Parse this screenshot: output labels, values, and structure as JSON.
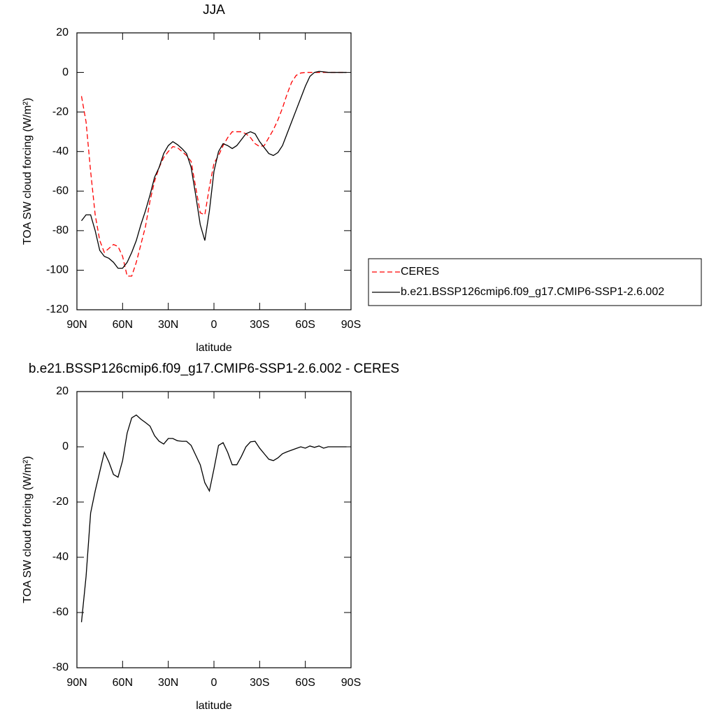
{
  "chart_data": [
    {
      "type": "line",
      "title": "JJA",
      "xlabel": "latitude",
      "ylabel": "TOA SW cloud forcing (W/m²)",
      "xlim": [
        90,
        -90
      ],
      "ylim": [
        -120,
        20
      ],
      "xticks": [
        {
          "value": 90,
          "label": "90N"
        },
        {
          "value": 60,
          "label": "60N"
        },
        {
          "value": 30,
          "label": "30N"
        },
        0,
        {
          "value": -30,
          "label": "30S"
        },
        {
          "value": -60,
          "label": "60S"
        },
        {
          "value": -90,
          "label": "90S"
        }
      ],
      "yticks": [
        20,
        0,
        -20,
        -40,
        -60,
        -80,
        -100,
        -120
      ],
      "legend": "right",
      "x": [
        87,
        84,
        81,
        78,
        75,
        72,
        69,
        66,
        63,
        60,
        57,
        54,
        51,
        48,
        45,
        42,
        39,
        36,
        33,
        30,
        27,
        24,
        21,
        18,
        15,
        12,
        9,
        6,
        3,
        0,
        -3,
        -6,
        -9,
        -12,
        -15,
        -18,
        -21,
        -24,
        -27,
        -30,
        -33,
        -36,
        -39,
        -42,
        -45,
        -48,
        -51,
        -54,
        -57,
        -60,
        -63,
        -66,
        -69,
        -72,
        -75,
        -78,
        -81,
        -84,
        -87
      ],
      "series": [
        {
          "name": "CERES",
          "color": "#ff0000",
          "line_style": "dashed",
          "values": [
            -12,
            -25,
            -50,
            -72,
            -85,
            -91,
            -89,
            -87,
            -88,
            -93,
            -103,
            -103,
            -96,
            -87,
            -78,
            -65,
            -55,
            -48,
            -43,
            -40,
            -37.5,
            -38,
            -40,
            -42,
            -45,
            -58,
            -71,
            -72,
            -58,
            -46,
            -42,
            -37,
            -33,
            -30,
            -30,
            -30,
            -31,
            -33,
            -36,
            -37.5,
            -37,
            -33,
            -29,
            -24,
            -18,
            -11,
            -5,
            -1.5,
            -0.3,
            0,
            0,
            0,
            0,
            0,
            0,
            0,
            0,
            0,
            0
          ]
        },
        {
          "name": "b.e21.BSSP126cmip6.f09_g17.CMIP6-SSP1-2.6.002",
          "color": "#000000",
          "line_style": "solid",
          "values": [
            -75,
            -72,
            -72,
            -80,
            -90,
            -93,
            -94,
            -96,
            -99,
            -99,
            -96,
            -91,
            -85,
            -77,
            -70,
            -62,
            -53,
            -48,
            -41,
            -37,
            -35,
            -36.5,
            -38.5,
            -41,
            -48,
            -62,
            -77,
            -85,
            -70,
            -50,
            -40,
            -36,
            -37,
            -38.5,
            -37,
            -34,
            -31,
            -30,
            -31,
            -35,
            -38,
            -41,
            -42,
            -40.5,
            -37,
            -31,
            -25,
            -19,
            -13,
            -7,
            -2,
            0,
            0.5,
            0.3,
            0,
            0,
            0,
            0,
            0
          ]
        }
      ]
    },
    {
      "type": "line",
      "title": "b.e21.BSSP126cmip6.f09_g17.CMIP6-SSP1-2.6.002 - CERES",
      "xlabel": "latitude",
      "ylabel": "TOA SW cloud forcing (W/m²)",
      "xlim": [
        90,
        -90
      ],
      "ylim": [
        -80,
        20
      ],
      "xticks": [
        {
          "value": 90,
          "label": "90N"
        },
        {
          "value": 60,
          "label": "60N"
        },
        {
          "value": 30,
          "label": "30N"
        },
        0,
        {
          "value": -30,
          "label": "30S"
        },
        {
          "value": -60,
          "label": "60S"
        },
        {
          "value": -90,
          "label": "90S"
        }
      ],
      "yticks": [
        20,
        0,
        -20,
        -40,
        -60,
        -80
      ],
      "x": [
        87,
        84,
        81,
        78,
        75,
        72,
        69,
        66,
        63,
        60,
        57,
        54,
        51,
        48,
        45,
        42,
        39,
        36,
        33,
        30,
        27,
        24,
        21,
        18,
        15,
        12,
        9,
        6,
        3,
        0,
        -3,
        -6,
        -9,
        -12,
        -15,
        -18,
        -21,
        -24,
        -27,
        -30,
        -33,
        -36,
        -39,
        -42,
        -45,
        -48,
        -51,
        -54,
        -57,
        -60,
        -63,
        -66,
        -69,
        -72,
        -75,
        -78,
        -81,
        -84,
        -87
      ],
      "series": [
        {
          "color": "#000000",
          "line_style": "solid",
          "values": [
            -63.5,
            -47,
            -24,
            -16,
            -9,
            -2,
            -5.5,
            -10,
            -11,
            -5,
            5,
            10.5,
            11.5,
            10,
            8.8,
            7.5,
            4,
            2,
            1,
            3,
            3,
            2.2,
            2,
            2,
            0.5,
            -3,
            -6.5,
            -13,
            -16,
            -8,
            0.5,
            1.5,
            -2,
            -6.5,
            -6.5,
            -3.5,
            0,
            1.8,
            2,
            -0.5,
            -2.5,
            -4.5,
            -5,
            -4,
            -2.5,
            -1.8,
            -1.2,
            -0.6,
            0,
            -0.5,
            0.3,
            -0.2,
            0.3,
            -0.5,
            0,
            0,
            0,
            0,
            0
          ]
        }
      ]
    }
  ]
}
